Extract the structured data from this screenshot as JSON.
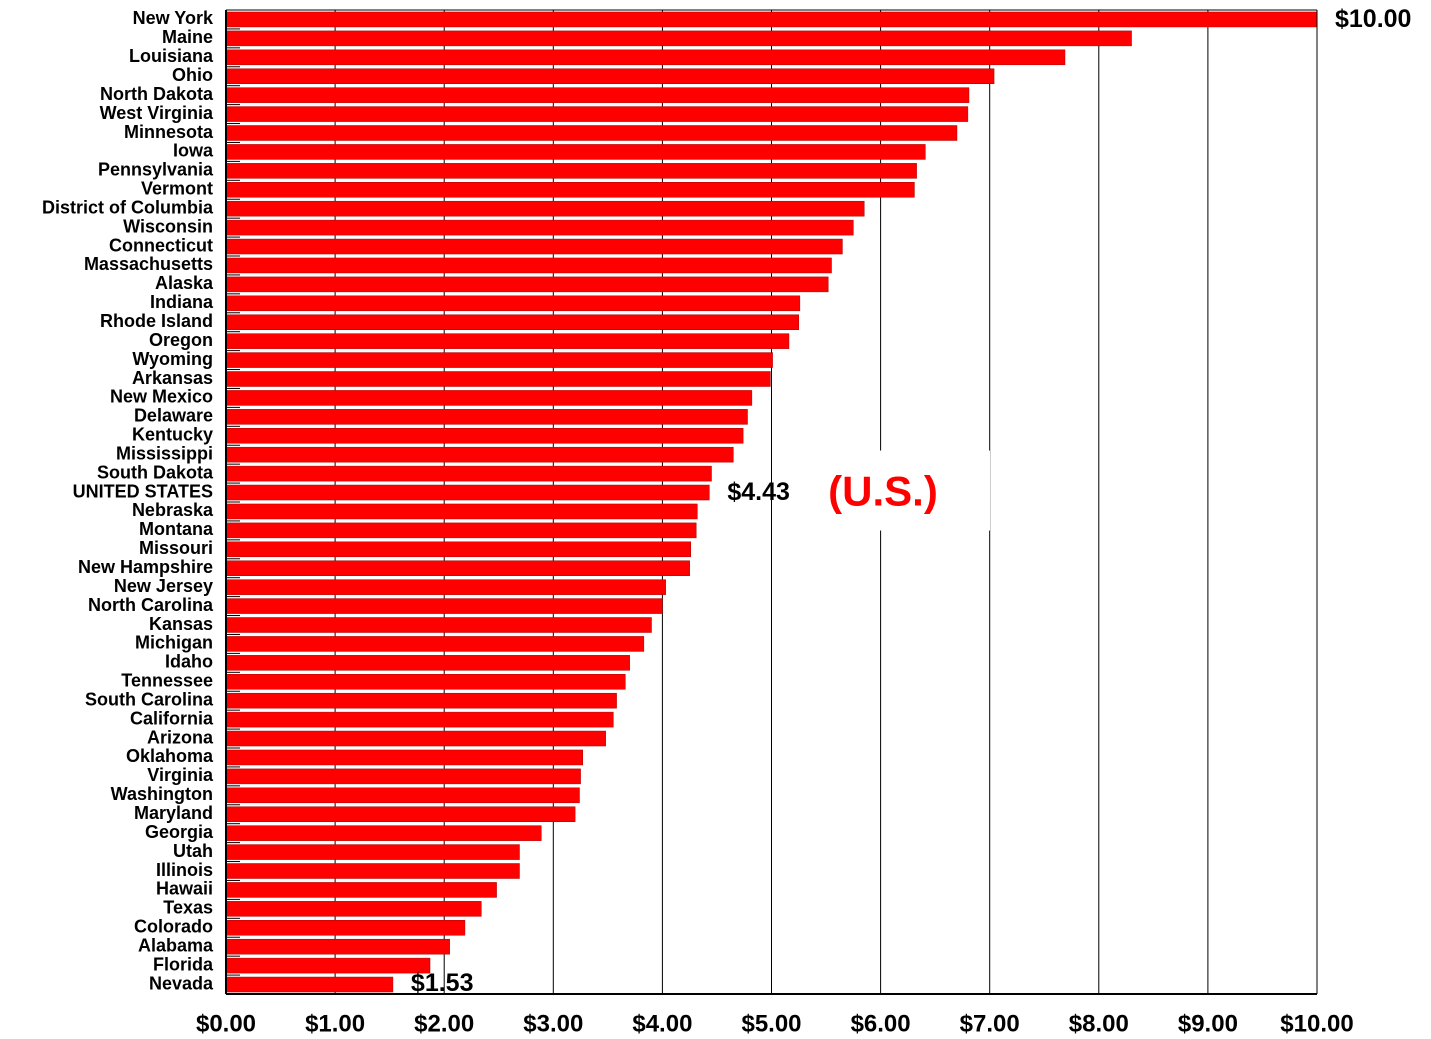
{
  "chart_data": {
    "type": "bar",
    "orientation": "horizontal",
    "categories": [
      "New York",
      "Maine",
      "Louisiana",
      "Ohio",
      "North Dakota",
      "West Virginia",
      "Minnesota",
      "Iowa",
      "Pennsylvania",
      "Vermont",
      "District of Columbia",
      "Wisconsin",
      "Connecticut",
      "Massachusetts",
      "Alaska",
      "Indiana",
      "Rhode Island",
      "Oregon",
      "Wyoming",
      "Arkansas",
      "New Mexico",
      "Delaware",
      "Kentucky",
      "Mississippi",
      "South Dakota",
      "UNITED STATES",
      "Nebraska",
      "Montana",
      "Missouri",
      "New Hampshire",
      "New Jersey",
      "North Carolina",
      "Kansas",
      "Michigan",
      "Idaho",
      "Tennessee",
      "South Carolina",
      "California",
      "Arizona",
      "Oklahoma",
      "Virginia",
      "Washington",
      "Maryland",
      "Georgia",
      "Utah",
      "Illinois",
      "Hawaii",
      "Texas",
      "Colorado",
      "Alabama",
      "Florida",
      "Nevada"
    ],
    "values": [
      10.0,
      8.3,
      7.69,
      7.04,
      6.81,
      6.8,
      6.7,
      6.41,
      6.33,
      6.31,
      5.85,
      5.75,
      5.65,
      5.55,
      5.52,
      5.26,
      5.25,
      5.16,
      5.01,
      4.99,
      4.82,
      4.78,
      4.74,
      4.65,
      4.45,
      4.43,
      4.32,
      4.31,
      4.26,
      4.25,
      4.03,
      4.0,
      3.9,
      3.83,
      3.7,
      3.66,
      3.58,
      3.55,
      3.48,
      3.27,
      3.25,
      3.24,
      3.2,
      2.89,
      2.69,
      2.69,
      2.48,
      2.34,
      2.19,
      2.05,
      1.87,
      1.53
    ],
    "value_labels": [
      "$10.00",
      null,
      null,
      null,
      null,
      null,
      null,
      null,
      null,
      null,
      null,
      null,
      null,
      null,
      null,
      null,
      null,
      null,
      null,
      null,
      null,
      null,
      null,
      null,
      null,
      "$4.43",
      null,
      null,
      null,
      null,
      null,
      null,
      null,
      null,
      null,
      null,
      null,
      null,
      null,
      null,
      null,
      null,
      null,
      null,
      null,
      null,
      null,
      null,
      null,
      null,
      null,
      "$1.53"
    ],
    "annotation": "(U.S.)",
    "color": "#ff0000",
    "xlim": [
      0,
      10
    ],
    "xticks": [
      {
        "value": 0,
        "label": "$0.00"
      },
      {
        "value": 1,
        "label": "$1.00"
      },
      {
        "value": 2,
        "label": "$2.00"
      },
      {
        "value": 3,
        "label": "$3.00"
      },
      {
        "value": 4,
        "label": "$4.00"
      },
      {
        "value": 5,
        "label": "$5.00"
      },
      {
        "value": 6,
        "label": "$6.00"
      },
      {
        "value": 7,
        "label": "$7.00"
      },
      {
        "value": 8,
        "label": "$8.00"
      },
      {
        "value": 9,
        "label": "$9.00"
      },
      {
        "value": 10,
        "label": "$10.00"
      }
    ],
    "grid": true
  }
}
